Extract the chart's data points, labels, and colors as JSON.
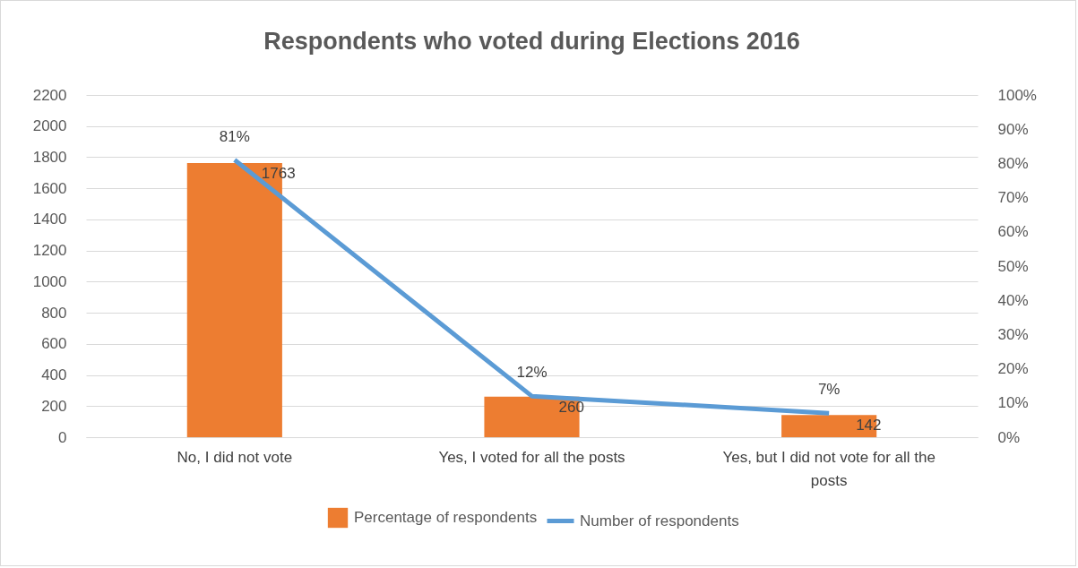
{
  "chart_data": {
    "type": "bar",
    "title": "Respondents who voted during Elections 2016",
    "categories": [
      "No, I did not vote",
      "Yes, I voted for all the posts",
      "Yes, but I did not vote for all the posts"
    ],
    "series": [
      {
        "name": "Percentage of respondents",
        "color": "#ed7d31",
        "values": [
          1763,
          260,
          142
        ],
        "value_labels": [
          "1763",
          "260",
          "142"
        ]
      },
      {
        "name": "Number of respondents",
        "type": "line",
        "axis": "y2",
        "color": "#5b9bd5",
        "values": [
          81,
          12,
          7
        ],
        "value_labels": [
          "81%",
          "12%",
          "7%"
        ]
      }
    ],
    "ylim": [
      0,
      2200
    ],
    "yticks": [
      0,
      200,
      400,
      600,
      800,
      1000,
      1200,
      1400,
      1600,
      1800,
      2000,
      2200
    ],
    "y2lim": [
      0,
      100
    ],
    "y2ticks": [
      {
        "value": 0,
        "label": "0%"
      },
      {
        "value": 10,
        "label": "10%"
      },
      {
        "value": 20,
        "label": "20%"
      },
      {
        "value": 30,
        "label": "30%"
      },
      {
        "value": 40,
        "label": "40%"
      },
      {
        "value": 50,
        "label": "50%"
      },
      {
        "value": 60,
        "label": "60%"
      },
      {
        "value": 70,
        "label": "70%"
      },
      {
        "value": 80,
        "label": "80%"
      },
      {
        "value": 90,
        "label": "90%"
      },
      {
        "value": 100,
        "label": "100%"
      }
    ],
    "grid": "y",
    "legend": "bottom"
  }
}
